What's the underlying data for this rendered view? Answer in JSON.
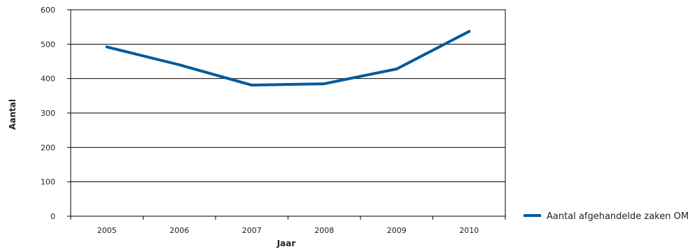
{
  "chart_data": {
    "type": "line",
    "title": "",
    "xlabel": "Jaar",
    "ylabel": "Aantal",
    "categories": [
      "2005",
      "2006",
      "2007",
      "2008",
      "2009",
      "2010"
    ],
    "ylim": [
      0,
      600
    ],
    "yticks": [
      "0",
      "100",
      "200",
      "300",
      "400",
      "500",
      "600"
    ],
    "series": [
      {
        "name": "Aantal afgehandelde zaken OM",
        "values": [
          492,
          440,
          381,
          385,
          428,
          537
        ]
      }
    ],
    "grid": "horizontal",
    "legend": "right",
    "colors": {
      "line": "#005a9c",
      "axis": "#000000",
      "grid": "#000000"
    }
  }
}
